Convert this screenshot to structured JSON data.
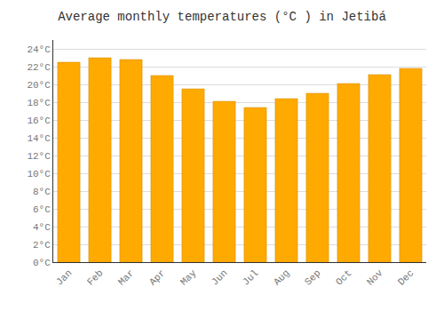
{
  "chart_data": {
    "type": "bar",
    "title": "Average monthly temperatures (°C ) in Jetibá",
    "categories": [
      "Jan",
      "Feb",
      "Mar",
      "Apr",
      "May",
      "Jun",
      "Jul",
      "Aug",
      "Sep",
      "Oct",
      "Nov",
      "Dec"
    ],
    "values": [
      22.5,
      23.0,
      22.8,
      21.0,
      19.5,
      18.1,
      17.4,
      18.4,
      19.0,
      20.1,
      21.1,
      21.8
    ],
    "color": "#FFAA00",
    "ylim": [
      0,
      25
    ],
    "yticks": [
      {
        "value": 0,
        "label": "0°C"
      },
      {
        "value": 2,
        "label": "2°C"
      },
      {
        "value": 4,
        "label": "4°C"
      },
      {
        "value": 6,
        "label": "6°C"
      },
      {
        "value": 8,
        "label": "8°C"
      },
      {
        "value": 10,
        "label": "10°C"
      },
      {
        "value": 12,
        "label": "12°C"
      },
      {
        "value": 14,
        "label": "14°C"
      },
      {
        "value": 16,
        "label": "16°C"
      },
      {
        "value": 18,
        "label": "18°C"
      },
      {
        "value": 20,
        "label": "20°C"
      },
      {
        "value": 22,
        "label": "22°C"
      },
      {
        "value": 24,
        "label": "24°C"
      }
    ],
    "grid": true
  }
}
